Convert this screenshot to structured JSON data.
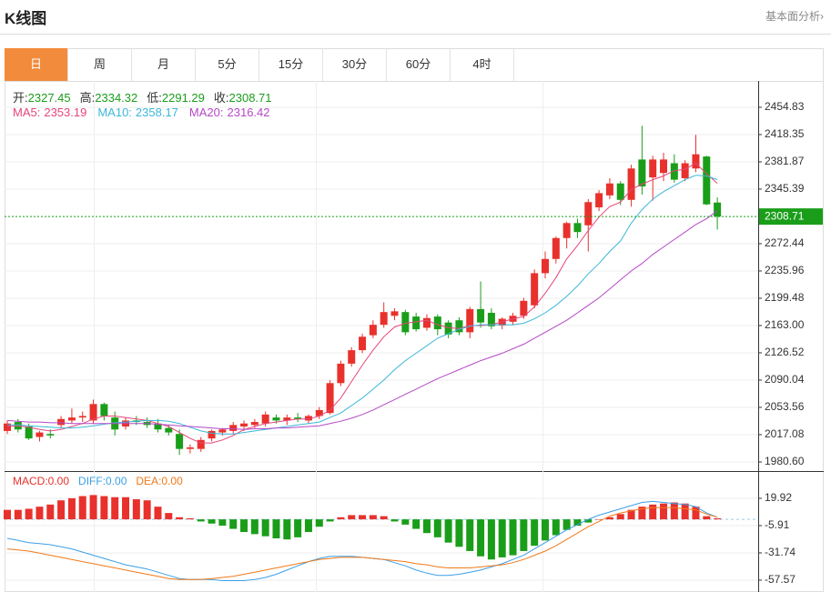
{
  "chart_data": {
    "type": "candlestick",
    "title": "K线图",
    "link": "基本面分析›",
    "tabs": [
      "日",
      "周",
      "月",
      "5分",
      "15分",
      "30分",
      "60分",
      "4时"
    ],
    "active_tab": 0,
    "ohlc_labels": [
      "开:",
      "高:",
      "低:",
      "收:"
    ],
    "up_color": "#e8312c",
    "down_color": "#1a9e1a",
    "open": [
      2022,
      2034,
      2028,
      2014,
      2018,
      2030,
      2036,
      2040,
      2036,
      2058,
      2040,
      2028,
      2036,
      2034,
      2032,
      2026,
      2018,
      1998,
      1998,
      2012,
      2020,
      2022,
      2028,
      2030,
      2032,
      2040,
      2036,
      2040,
      2036,
      2042,
      2046,
      2086,
      2112,
      2130,
      2150,
      2164,
      2176,
      2181,
      2175,
      2160,
      2175,
      2167,
      2170,
      2154,
      2185,
      2180,
      2163,
      2168,
      2176,
      2190,
      2233,
      2252,
      2280,
      2300,
      2297,
      2321,
      2337,
      2353,
      2331,
      2385,
      2361,
      2367,
      2380,
      2360,
      2373,
      2389,
      2327.45
    ],
    "high": [
      2036,
      2038,
      2032,
      2022,
      2024,
      2042,
      2052,
      2048,
      2064,
      2060,
      2048,
      2040,
      2042,
      2040,
      2038,
      2030,
      2024,
      2004,
      2014,
      2024,
      2026,
      2034,
      2036,
      2038,
      2048,
      2044,
      2044,
      2046,
      2044,
      2054,
      2090,
      2116,
      2134,
      2152,
      2170,
      2194,
      2186,
      2184,
      2180,
      2178,
      2178,
      2170,
      2174,
      2188,
      2222,
      2186,
      2174,
      2180,
      2200,
      2238,
      2262,
      2282,
      2302,
      2306,
      2332,
      2344,
      2360,
      2356,
      2378,
      2430,
      2390,
      2394,
      2392,
      2384,
      2418,
      2390,
      2334.32
    ],
    "low": [
      2018,
      2020,
      2010,
      2008,
      2012,
      2026,
      2032,
      2034,
      2032,
      2036,
      2016,
      2024,
      2030,
      2026,
      2020,
      2016,
      1990,
      1992,
      1994,
      2008,
      2016,
      2018,
      2022,
      2026,
      2028,
      2032,
      2030,
      2034,
      2032,
      2038,
      2044,
      2082,
      2108,
      2126,
      2146,
      2160,
      2170,
      2150,
      2155,
      2156,
      2150,
      2146,
      2150,
      2146,
      2160,
      2158,
      2158,
      2164,
      2172,
      2186,
      2226,
      2246,
      2266,
      2280,
      2262,
      2316,
      2332,
      2324,
      2322,
      2338,
      2330,
      2356,
      2354,
      2356,
      2368,
      2324,
      2291.29
    ],
    "close": [
      2032,
      2024,
      2012,
      2020,
      2016,
      2038,
      2040,
      2042,
      2058,
      2042,
      2024,
      2036,
      2034,
      2030,
      2024,
      2020,
      1998,
      2000,
      2010,
      2022,
      2024,
      2030,
      2032,
      2034,
      2044,
      2036,
      2040,
      2038,
      2042,
      2050,
      2086,
      2112,
      2130,
      2148,
      2164,
      2181,
      2182,
      2154,
      2158,
      2173,
      2158,
      2151,
      2154,
      2185,
      2167,
      2162,
      2172,
      2176,
      2196,
      2233,
      2252,
      2280,
      2300,
      2288,
      2328,
      2340,
      2353,
      2331,
      2373,
      2349,
      2385,
      2385,
      2358,
      2380,
      2392,
      2325,
      2308.71
    ],
    "series": [
      {
        "name": "MA5:",
        "color": "#e6457a",
        "values": [
          2028,
          2029,
          2027,
          2024,
          2022,
          2024,
          2028,
          2032,
          2038,
          2042,
          2042,
          2040,
          2038,
          2036,
          2032,
          2028,
          2020,
          2012,
          2006,
          2006,
          2010,
          2016,
          2024,
          2028,
          2032,
          2034,
          2036,
          2038,
          2038,
          2042,
          2050,
          2066,
          2088,
          2110,
          2130,
          2148,
          2161,
          2166,
          2168,
          2170,
          2164,
          2160,
          2159,
          2163,
          2163,
          2164,
          2168,
          2172,
          2175,
          2188,
          2206,
          2227,
          2252,
          2270,
          2290,
          2308,
          2322,
          2328,
          2345,
          2352,
          2358,
          2363,
          2370,
          2372,
          2380,
          2366,
          2353.19
        ]
      },
      {
        "name": "MA10:",
        "color": "#3bb7d8",
        "values": [
          2030,
          2030,
          2029,
          2028,
          2027,
          2026,
          2026,
          2027,
          2029,
          2031,
          2033,
          2034,
          2035,
          2036,
          2036,
          2035,
          2032,
          2027,
          2022,
          2019,
          2018,
          2018,
          2020,
          2022,
          2024,
          2026,
          2028,
          2030,
          2032,
          2034,
          2040,
          2046,
          2056,
          2066,
          2078,
          2090,
          2104,
          2116,
          2126,
          2136,
          2146,
          2152,
          2158,
          2162,
          2164,
          2164,
          2164,
          2164,
          2166,
          2172,
          2180,
          2190,
          2202,
          2216,
          2232,
          2246,
          2262,
          2276,
          2300,
          2318,
          2332,
          2342,
          2350,
          2358,
          2364,
          2363,
          2358.17
        ]
      },
      {
        "name": "MA20:",
        "color": "#b548c6",
        "values": [
          2036,
          2035,
          2034,
          2034,
          2033,
          2033,
          2032,
          2032,
          2032,
          2032,
          2032,
          2032,
          2032,
          2032,
          2031,
          2030,
          2029,
          2028,
          2027,
          2026,
          2025,
          2025,
          2024,
          2025,
          2025,
          2026,
          2026,
          2027,
          2028,
          2029,
          2032,
          2035,
          2039,
          2044,
          2050,
          2057,
          2064,
          2071,
          2078,
          2085,
          2092,
          2098,
          2104,
          2110,
          2116,
          2121,
          2126,
          2132,
          2138,
          2146,
          2154,
          2162,
          2170,
          2180,
          2190,
          2200,
          2212,
          2224,
          2236,
          2246,
          2258,
          2268,
          2278,
          2288,
          2298,
          2306,
          2316.42
        ]
      }
    ],
    "ylim": [
      1968.4,
      2486.4
    ],
    "yticks": [
      2454.83,
      2418.35,
      2381.87,
      2345.39,
      2272.44,
      2235.96,
      2199.48,
      {
        "value": 2163,
        "label": "2163.00"
      },
      2126.52,
      2090.04,
      2053.56,
      2017.08,
      {
        "value": 1980.6,
        "label": "1980.60"
      }
    ],
    "grid": true,
    "macd": {
      "legend": [
        "MACD:0.00",
        "DIFF:0.00",
        "DEA:0.00"
      ],
      "legend_colors": [
        "#e8312c",
        "#3ba0e6",
        "#f07a1a"
      ],
      "hist": [
        9,
        9,
        10,
        12,
        14,
        18,
        20,
        22,
        23,
        22,
        21,
        21,
        19,
        18,
        12,
        6,
        2,
        1,
        -2,
        -4,
        -6,
        -9,
        -12,
        -14,
        -16,
        -18,
        -19,
        -17,
        -12,
        -7,
        -2,
        2,
        4,
        4,
        4,
        3,
        -2,
        -5,
        -9,
        -13,
        -17,
        -22,
        -26,
        -30,
        -35,
        -38,
        -36,
        -34,
        -30,
        -25,
        -20,
        -15,
        -10,
        -6,
        -3,
        0,
        2,
        5,
        9,
        12,
        14,
        15,
        16,
        15,
        12,
        3,
        1
      ],
      "diff": [
        -18,
        -20,
        -22,
        -23,
        -24,
        -26,
        -28,
        -31,
        -34,
        -37,
        -40,
        -43,
        -45,
        -47,
        -50,
        -53,
        -56,
        -57,
        -57,
        -57,
        -58,
        -58,
        -58,
        -57,
        -55,
        -52,
        -48,
        -44,
        -40,
        -37,
        -35,
        -35,
        -35,
        -36,
        -37,
        -38,
        -41,
        -44,
        -48,
        -51,
        -53,
        -53,
        -52,
        -50,
        -48,
        -45,
        -42,
        -38,
        -34,
        -28,
        -22,
        -16,
        -10,
        -5,
        0,
        4,
        7,
        10,
        13,
        16,
        17,
        16,
        15,
        14,
        12,
        6,
        2
      ],
      "dea": [
        -28,
        -29,
        -30,
        -32,
        -34,
        -36,
        -38,
        -40,
        -42,
        -44,
        -46,
        -48,
        -50,
        -52,
        -54,
        -56,
        -57,
        -57,
        -57,
        -56,
        -55,
        -54,
        -52,
        -50,
        -48,
        -46,
        -44,
        -42,
        -40,
        -38,
        -37,
        -36,
        -36,
        -36,
        -37,
        -38,
        -39,
        -40,
        -42,
        -43,
        -45,
        -46,
        -46,
        -46,
        -45,
        -44,
        -43,
        -41,
        -38,
        -34,
        -30,
        -25,
        -19,
        -13,
        -7,
        -2,
        3,
        6,
        8,
        10,
        11,
        11,
        11,
        10,
        9,
        5,
        2
      ],
      "ylim": [
        -66.2,
        44.0
      ],
      "yticks": [
        19.92,
        -5.91,
        -31.74,
        -57.57
      ]
    }
  }
}
